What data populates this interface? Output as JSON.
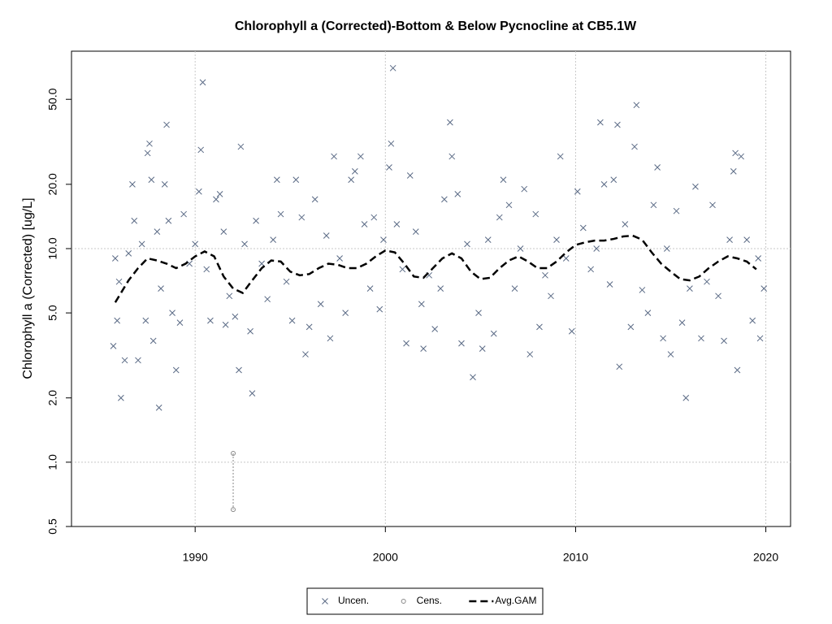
{
  "chart_data": {
    "type": "scatter",
    "title": "Chlorophyll a (Corrected)-Bottom & Below Pycnocline at CB5.1W",
    "y_label": "Chlorophyll a (Corrected) [ug/L]",
    "xlim": [
      1983.5,
      2021.3
    ],
    "xticks": [
      1990,
      2000,
      2010,
      2020
    ],
    "ylim": [
      0.5,
      84
    ],
    "log_y": true,
    "grid": true,
    "legend": "bottom",
    "yticks": [
      0.5,
      {
        "value": 1,
        "label": "1.0"
      },
      {
        "value": 2,
        "label": "2.0"
      },
      {
        "value": 5,
        "label": "5.0"
      },
      {
        "value": 10,
        "label": "10.0"
      },
      {
        "value": 20,
        "label": "20.0"
      },
      {
        "value": 50,
        "label": "50.0"
      }
    ],
    "series": [
      {
        "name": "Uncen.",
        "color": "#5a6a85",
        "marker": "x",
        "x": [
          1985.7,
          1985.8,
          1985.9,
          1986.0,
          1986.1,
          1986.3,
          1986.5,
          1986.7,
          1986.8,
          1987.0,
          1987.2,
          1987.4,
          1987.5,
          1987.6,
          1987.7,
          1987.8,
          1988.0,
          1988.1,
          1988.2,
          1988.4,
          1988.5,
          1988.6,
          1988.8,
          1989.0,
          1989.2,
          1989.4,
          1989.7,
          1990.0,
          1990.2,
          1990.3,
          1990.4,
          1990.6,
          1990.8,
          1991.1,
          1991.3,
          1991.5,
          1991.6,
          1991.8,
          1992.1,
          1992.3,
          1992.4,
          1992.6,
          1992.9,
          1993.0,
          1993.2,
          1993.5,
          1993.8,
          1994.1,
          1994.3,
          1994.5,
          1994.8,
          1995.1,
          1995.3,
          1995.6,
          1995.8,
          1996.0,
          1996.3,
          1996.6,
          1996.9,
          1997.1,
          1997.3,
          1997.6,
          1997.9,
          1998.2,
          1998.4,
          1998.7,
          1998.9,
          1999.2,
          1999.4,
          1999.7,
          1999.9,
          2000.2,
          2000.3,
          2000.4,
          2000.6,
          2000.9,
          2001.1,
          2001.3,
          2001.6,
          2001.9,
          2002.0,
          2002.3,
          2002.6,
          2002.9,
          2003.1,
          2003.4,
          2003.5,
          2003.8,
          2004.0,
          2004.3,
          2004.6,
          2004.9,
          2005.1,
          2005.4,
          2005.7,
          2006.0,
          2006.2,
          2006.5,
          2006.8,
          2007.1,
          2007.3,
          2007.6,
          2007.9,
          2008.1,
          2008.4,
          2008.7,
          2009.0,
          2009.2,
          2009.5,
          2009.8,
          2010.1,
          2010.4,
          2010.8,
          2011.1,
          2011.3,
          2011.5,
          2011.8,
          2012.0,
          2012.2,
          2012.3,
          2012.6,
          2012.9,
          2013.1,
          2013.2,
          2013.5,
          2013.8,
          2014.1,
          2014.3,
          2014.6,
          2014.8,
          2015.0,
          2015.3,
          2015.6,
          2015.8,
          2016.0,
          2016.3,
          2016.6,
          2016.9,
          2017.2,
          2017.5,
          2017.8,
          2018.1,
          2018.3,
          2018.4,
          2018.5,
          2018.7,
          2019.0,
          2019.3,
          2019.6,
          2019.7,
          2019.9
        ],
        "values": [
          3.5,
          9.0,
          4.6,
          7.0,
          2.0,
          3.0,
          9.5,
          20,
          13.5,
          3.0,
          10.5,
          4.6,
          28,
          31,
          21,
          3.7,
          12,
          1.8,
          6.5,
          20,
          38,
          13.5,
          5.0,
          2.7,
          4.5,
          14.5,
          8.5,
          10.5,
          18.5,
          29,
          60,
          8,
          4.6,
          17,
          18,
          12,
          4.4,
          6.0,
          4.8,
          2.7,
          30,
          10.5,
          4.1,
          2.1,
          13.5,
          8.5,
          5.8,
          11,
          21,
          14.5,
          7.0,
          4.6,
          21,
          14,
          3.2,
          4.3,
          17,
          5.5,
          11.5,
          3.8,
          27,
          9.0,
          5.0,
          21,
          23,
          27,
          13,
          6.5,
          14,
          5.2,
          11,
          24,
          31,
          70,
          13,
          8,
          3.6,
          22,
          12,
          5.5,
          3.4,
          7.5,
          4.2,
          6.5,
          17,
          39,
          27,
          18,
          3.6,
          10.5,
          2.5,
          5.0,
          3.4,
          11,
          4.0,
          14,
          21,
          16,
          6.5,
          10,
          19,
          3.2,
          14.5,
          4.3,
          7.5,
          6.0,
          11,
          27,
          9,
          4.1,
          18.5,
          12.5,
          8.0,
          10,
          39,
          20,
          6.8,
          21,
          38,
          2.8,
          13,
          4.3,
          30,
          47,
          6.4,
          5.0,
          16,
          24,
          3.8,
          10,
          3.2,
          15,
          4.5,
          2.0,
          6.5,
          19.5,
          3.8,
          7,
          16,
          6.0,
          3.7,
          11,
          23,
          28,
          2.7,
          27,
          11,
          4.6,
          9,
          3.8,
          6.5
        ]
      },
      {
        "name": "Cens.",
        "color": "#888888",
        "marker": "o",
        "x": [
          1992.0
        ],
        "values": [
          1.1
        ],
        "lower": [
          0.6
        ]
      },
      {
        "name": "Avg.GAM",
        "color": "#000000",
        "marker": "dashed",
        "x": [
          1985.8,
          1986.5,
          1987,
          1987.5,
          1988,
          1988.5,
          1989,
          1989.5,
          1990,
          1990.5,
          1991,
          1991.5,
          1992,
          1992.5,
          1993,
          1993.5,
          1994,
          1994.5,
          1995,
          1995.5,
          1996,
          1996.5,
          1997,
          1997.5,
          1998,
          1998.5,
          1999,
          1999.5,
          2000,
          2000.5,
          2001,
          2001.5,
          2002,
          2002.5,
          2003,
          2003.5,
          2004,
          2004.5,
          2005,
          2005.5,
          2006,
          2006.5,
          2007,
          2007.5,
          2008,
          2008.5,
          2009,
          2009.5,
          2010,
          2010.5,
          2011,
          2011.5,
          2012,
          2012.5,
          2013,
          2013.5,
          2014,
          2014.5,
          2015,
          2015.5,
          2016,
          2016.5,
          2017,
          2017.5,
          2018,
          2018.5,
          2019,
          2019.5
        ],
        "values": [
          5.6,
          7.1,
          8.1,
          9.0,
          8.8,
          8.5,
          8.1,
          8.5,
          9.2,
          9.7,
          9.2,
          7.4,
          6.5,
          6.2,
          7.1,
          8.1,
          8.8,
          8.7,
          7.8,
          7.5,
          7.6,
          8.1,
          8.5,
          8.4,
          8.1,
          8.1,
          8.5,
          9.2,
          9.8,
          9.6,
          8.5,
          7.4,
          7.3,
          8.1,
          9.0,
          9.5,
          9.0,
          7.8,
          7.2,
          7.3,
          8.1,
          8.8,
          9.2,
          8.7,
          8.1,
          8.1,
          8.7,
          9.6,
          10.4,
          10.7,
          10.9,
          10.9,
          11.1,
          11.4,
          11.5,
          11.0,
          9.6,
          8.5,
          7.8,
          7.2,
          7.1,
          7.4,
          8.1,
          8.7,
          9.2,
          9.0,
          8.7,
          8.0
        ]
      }
    ]
  }
}
